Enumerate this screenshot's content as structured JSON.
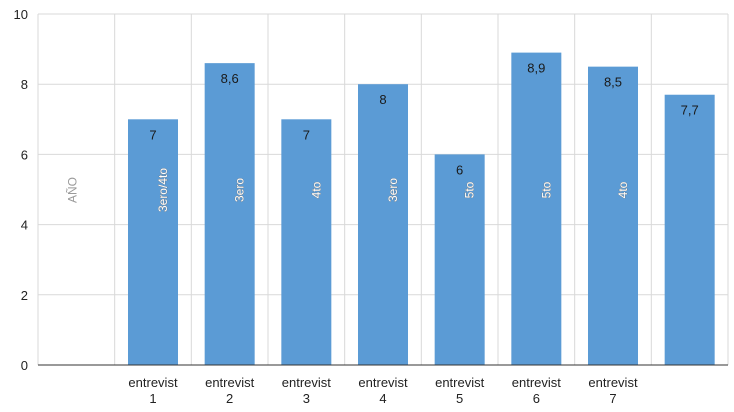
{
  "chart_data": {
    "type": "bar",
    "categories": [
      "",
      "entrevist\n1",
      "entrevist\n2",
      "entrevist\n3",
      "entrevist\n4",
      "entrevist\n5",
      "entrevist\n6",
      "entrevist\n7",
      ""
    ],
    "values": [
      null,
      7,
      8.6,
      7,
      8,
      6,
      8.9,
      8.5,
      7.7
    ],
    "value_labels": [
      "",
      "7",
      "8,6",
      "7",
      "8",
      "6",
      "8,9",
      "8,5",
      "7,7"
    ],
    "rotated_labels": [
      "AÑO",
      "3ero/4to",
      "3ero",
      "4to",
      "3ero",
      "5to",
      "5to",
      "4to",
      ""
    ],
    "ylim": [
      0,
      10
    ],
    "yticks": [
      0,
      2,
      4,
      6,
      8,
      10
    ],
    "grid": true,
    "bar_color": "#5b9bd5",
    "title": "",
    "xlabel": "",
    "ylabel": ""
  }
}
